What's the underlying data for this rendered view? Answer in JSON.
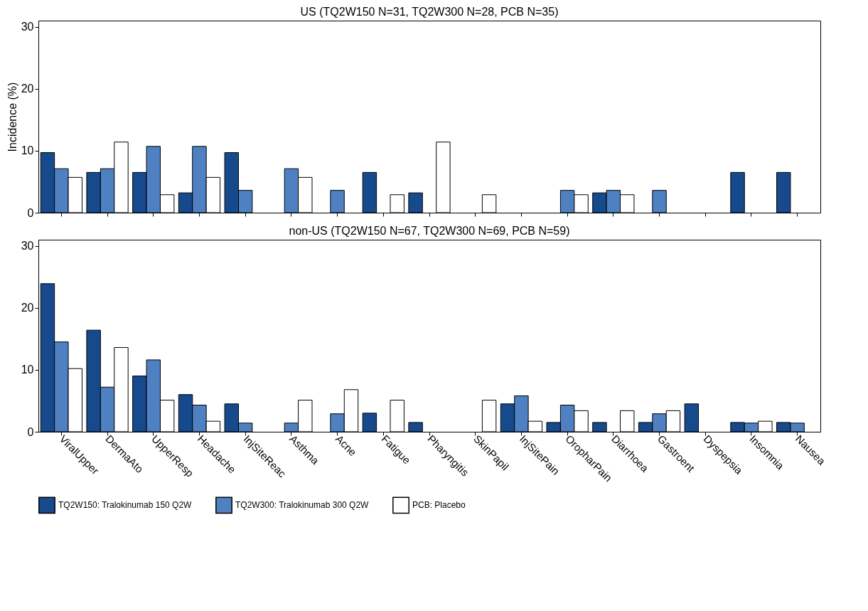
{
  "chart_data": [
    {
      "type": "bar",
      "title": "US (TQ2W150 N=31, TQ2W300 N=28, PCB N=35)",
      "ylabel": "Incidence (%)",
      "ylim": [
        0,
        31
      ],
      "yticks": [
        0,
        10,
        20,
        30
      ],
      "grid": false,
      "tick_labels": "y",
      "series": [
        {
          "color": "#174a8c",
          "values": [
            9.7,
            6.5,
            6.5,
            3.2,
            9.7,
            null,
            null,
            6.5,
            3.2,
            null,
            null,
            null,
            3.2,
            null,
            null,
            6.5,
            6.5
          ]
        },
        {
          "color": "#4f81c2",
          "values": [
            7.1,
            7.1,
            10.7,
            10.7,
            3.6,
            7.1,
            3.6,
            null,
            null,
            null,
            null,
            3.6,
            3.6,
            3.6,
            null,
            null,
            null
          ]
        },
        {
          "color": "#ffffff",
          "values": [
            5.7,
            11.4,
            2.9,
            5.7,
            null,
            5.7,
            null,
            2.9,
            11.4,
            2.9,
            null,
            2.9,
            2.9,
            null,
            null,
            null,
            null
          ]
        }
      ]
    },
    {
      "type": "bar",
      "title": "non-US (TQ2W150 N=67, TQ2W300 N=69, PCB N=59)",
      "categories": [
        "ViralUpper",
        "DermaAto",
        "UpperResp",
        "Headache",
        "InjSiteReac",
        "Asthma",
        "Acne",
        "Fatigue",
        "Pharyngitis",
        "SkinPapil",
        "InjSitePain",
        "OropharPain",
        "Diarrhoea",
        "Gastroent",
        "Dyspepsia",
        "Insomnia",
        "Nausea"
      ],
      "ylim": [
        0,
        31
      ],
      "yticks": [
        0,
        10,
        20,
        30
      ],
      "grid": false,
      "legend": "bottom",
      "series": [
        {
          "name": "TQ2W150: Tralokinumab 150 Q2W",
          "color": "#174a8c",
          "values": [
            23.9,
            16.4,
            9.0,
            6.0,
            4.5,
            null,
            null,
            3.0,
            1.5,
            null,
            4.5,
            1.5,
            1.5,
            1.5,
            4.5,
            1.5,
            1.5
          ]
        },
        {
          "name": "TQ2W300: Tralokinumab 300 Q2W",
          "color": "#4f81c2",
          "values": [
            14.5,
            7.2,
            11.6,
            4.3,
            1.4,
            1.4,
            2.9,
            null,
            null,
            null,
            5.8,
            4.3,
            null,
            2.9,
            null,
            1.4,
            1.4
          ]
        },
        {
          "name": "PCB: Placebo",
          "color": "#ffffff",
          "values": [
            10.2,
            13.6,
            5.1,
            1.7,
            null,
            5.1,
            6.8,
            5.1,
            null,
            5.1,
            1.7,
            3.4,
            3.4,
            3.4,
            null,
            1.7,
            null
          ]
        }
      ]
    }
  ]
}
